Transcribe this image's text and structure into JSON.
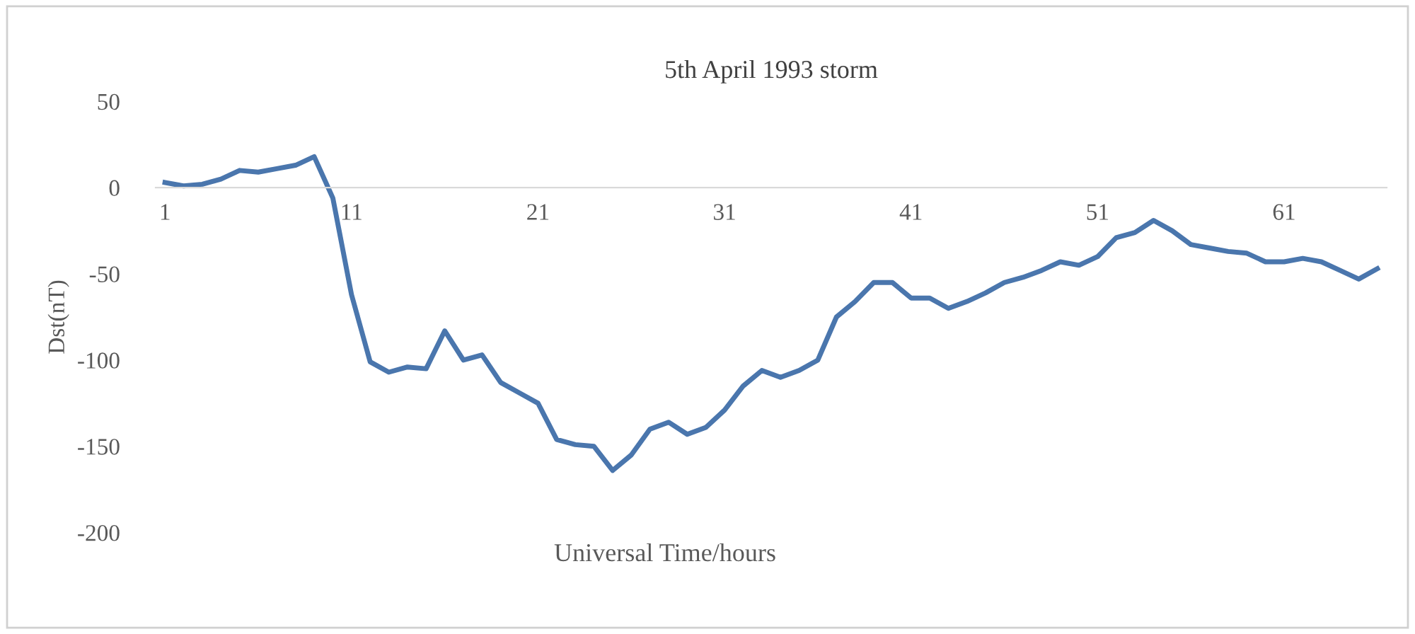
{
  "chart_data": {
    "type": "line",
    "title": "5th April 1993 storm",
    "xlabel": "Universal Time/hours",
    "ylabel": "Dst(nT)",
    "x": [
      1,
      2,
      3,
      4,
      5,
      6,
      7,
      8,
      9,
      10,
      11,
      12,
      13,
      14,
      15,
      16,
      17,
      18,
      19,
      20,
      21,
      22,
      23,
      24,
      25,
      26,
      27,
      28,
      29,
      30,
      31,
      32,
      33,
      34,
      35,
      36,
      37,
      38,
      39,
      40,
      41,
      42,
      43,
      44,
      45,
      46,
      47,
      48,
      49,
      50,
      51,
      52,
      53,
      54,
      55,
      56,
      57,
      58,
      59,
      60,
      61,
      62,
      63,
      64,
      65,
      66
    ],
    "series": [
      {
        "color": "#4a76ad",
        "values": [
          3,
          1,
          2,
          5,
          10,
          9,
          11,
          13,
          18,
          -6,
          -62,
          -101,
          -107,
          -104,
          -105,
          -83,
          -100,
          -97,
          -113,
          -119,
          -125,
          -146,
          -149,
          -150,
          -164,
          -155,
          -140,
          -136,
          -143,
          -139,
          -129,
          -115,
          -106,
          -110,
          -106,
          -100,
          -75,
          -66,
          -55,
          -55,
          -64,
          -64,
          -70,
          -66,
          -61,
          -55,
          -52,
          -48,
          -43,
          -45,
          -40,
          -29,
          -26,
          -19,
          -25,
          -33,
          -35,
          -37,
          -38,
          -43,
          -43,
          -41,
          -43,
          -48,
          -53,
          -47
        ]
      }
    ],
    "xlim": [
      0.5,
      66.5
    ],
    "xticks": [
      1,
      11,
      21,
      31,
      41,
      51,
      61
    ],
    "ylim": [
      -200,
      50
    ],
    "yticks": [
      -200,
      -150,
      -100,
      -50,
      0,
      50
    ],
    "marker": "none",
    "line_style": "solid"
  }
}
